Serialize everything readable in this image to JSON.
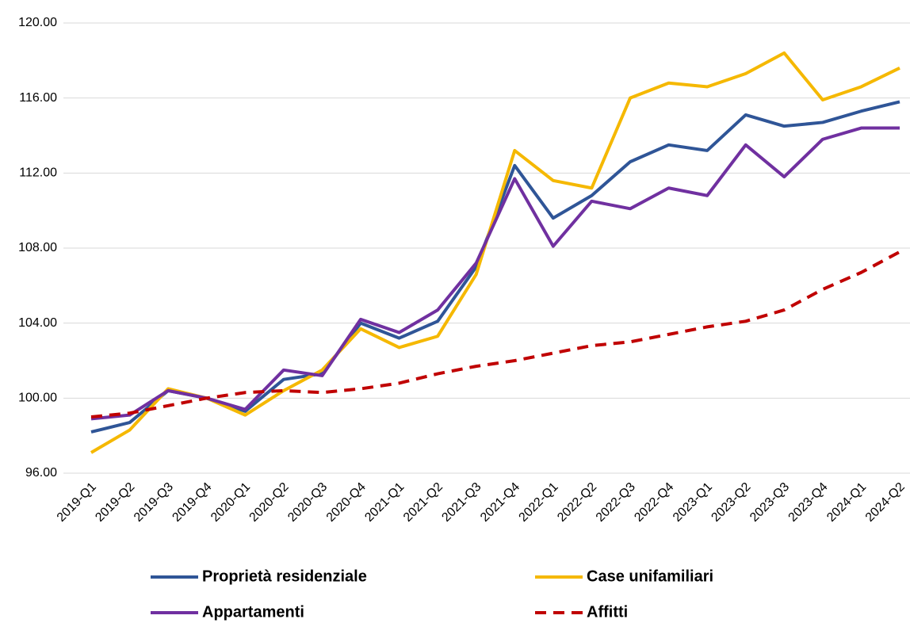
{
  "chart_data": {
    "type": "line",
    "categories": [
      "2019-Q1",
      "2019-Q2",
      "2019-Q3",
      "2019-Q4",
      "2020-Q1",
      "2020-Q2",
      "2020-Q3",
      "2020-Q4",
      "2021-Q1",
      "2021-Q2",
      "2021-Q3",
      "2021-Q4",
      "2022-Q1",
      "2022-Q2",
      "2022-Q3",
      "2022-Q4",
      "2023-Q1",
      "2023-Q2",
      "2023-Q3",
      "2023-Q4",
      "2024-Q1",
      "2024-Q2"
    ],
    "series": [
      {
        "name": "Proprietà residenziale",
        "color": "#2f5597",
        "values": [
          98.2,
          98.7,
          100.4,
          100.0,
          99.3,
          101.0,
          101.3,
          104.0,
          103.2,
          104.1,
          107.0,
          112.4,
          109.6,
          110.8,
          112.6,
          113.5,
          113.2,
          115.1,
          114.5,
          114.7,
          115.3,
          115.8
        ]
      },
      {
        "name": "Case unifamiliari",
        "color": "#f5b800",
        "values": [
          97.1,
          98.3,
          100.5,
          100.0,
          99.1,
          100.4,
          101.5,
          103.7,
          102.7,
          103.3,
          106.6,
          113.2,
          111.6,
          111.2,
          116.0,
          116.8,
          116.6,
          117.3,
          118.4,
          115.9,
          116.6,
          117.6
        ]
      },
      {
        "name": "Appartamenti",
        "color": "#7030a0",
        "values": [
          98.9,
          99.1,
          100.4,
          100.0,
          99.4,
          101.5,
          101.2,
          104.2,
          103.5,
          104.7,
          107.2,
          111.7,
          108.1,
          110.5,
          110.1,
          111.2,
          110.8,
          113.5,
          111.8,
          113.8,
          114.4,
          114.4
        ]
      },
      {
        "name": "Affitti",
        "color": "#c00000",
        "dashed": true,
        "values": [
          99.0,
          99.2,
          99.6,
          100.0,
          100.3,
          100.4,
          100.3,
          100.5,
          100.8,
          101.3,
          101.7,
          102.0,
          102.4,
          102.8,
          103.0,
          103.4,
          103.8,
          104.1,
          104.7,
          105.8,
          106.7,
          107.8
        ]
      }
    ],
    "ylim": [
      96,
      120
    ],
    "yticks": [
      {
        "value": 96,
        "label": "96.00"
      },
      {
        "value": 100,
        "label": "100.00"
      },
      {
        "value": 104,
        "label": "104.00"
      },
      {
        "value": 108,
        "label": "108.00"
      },
      {
        "value": 112,
        "label": "112.00"
      },
      {
        "value": 116,
        "label": "116.00"
      },
      {
        "value": 120,
        "label": "120.00"
      }
    ],
    "grid": true,
    "legend": "bottom"
  }
}
